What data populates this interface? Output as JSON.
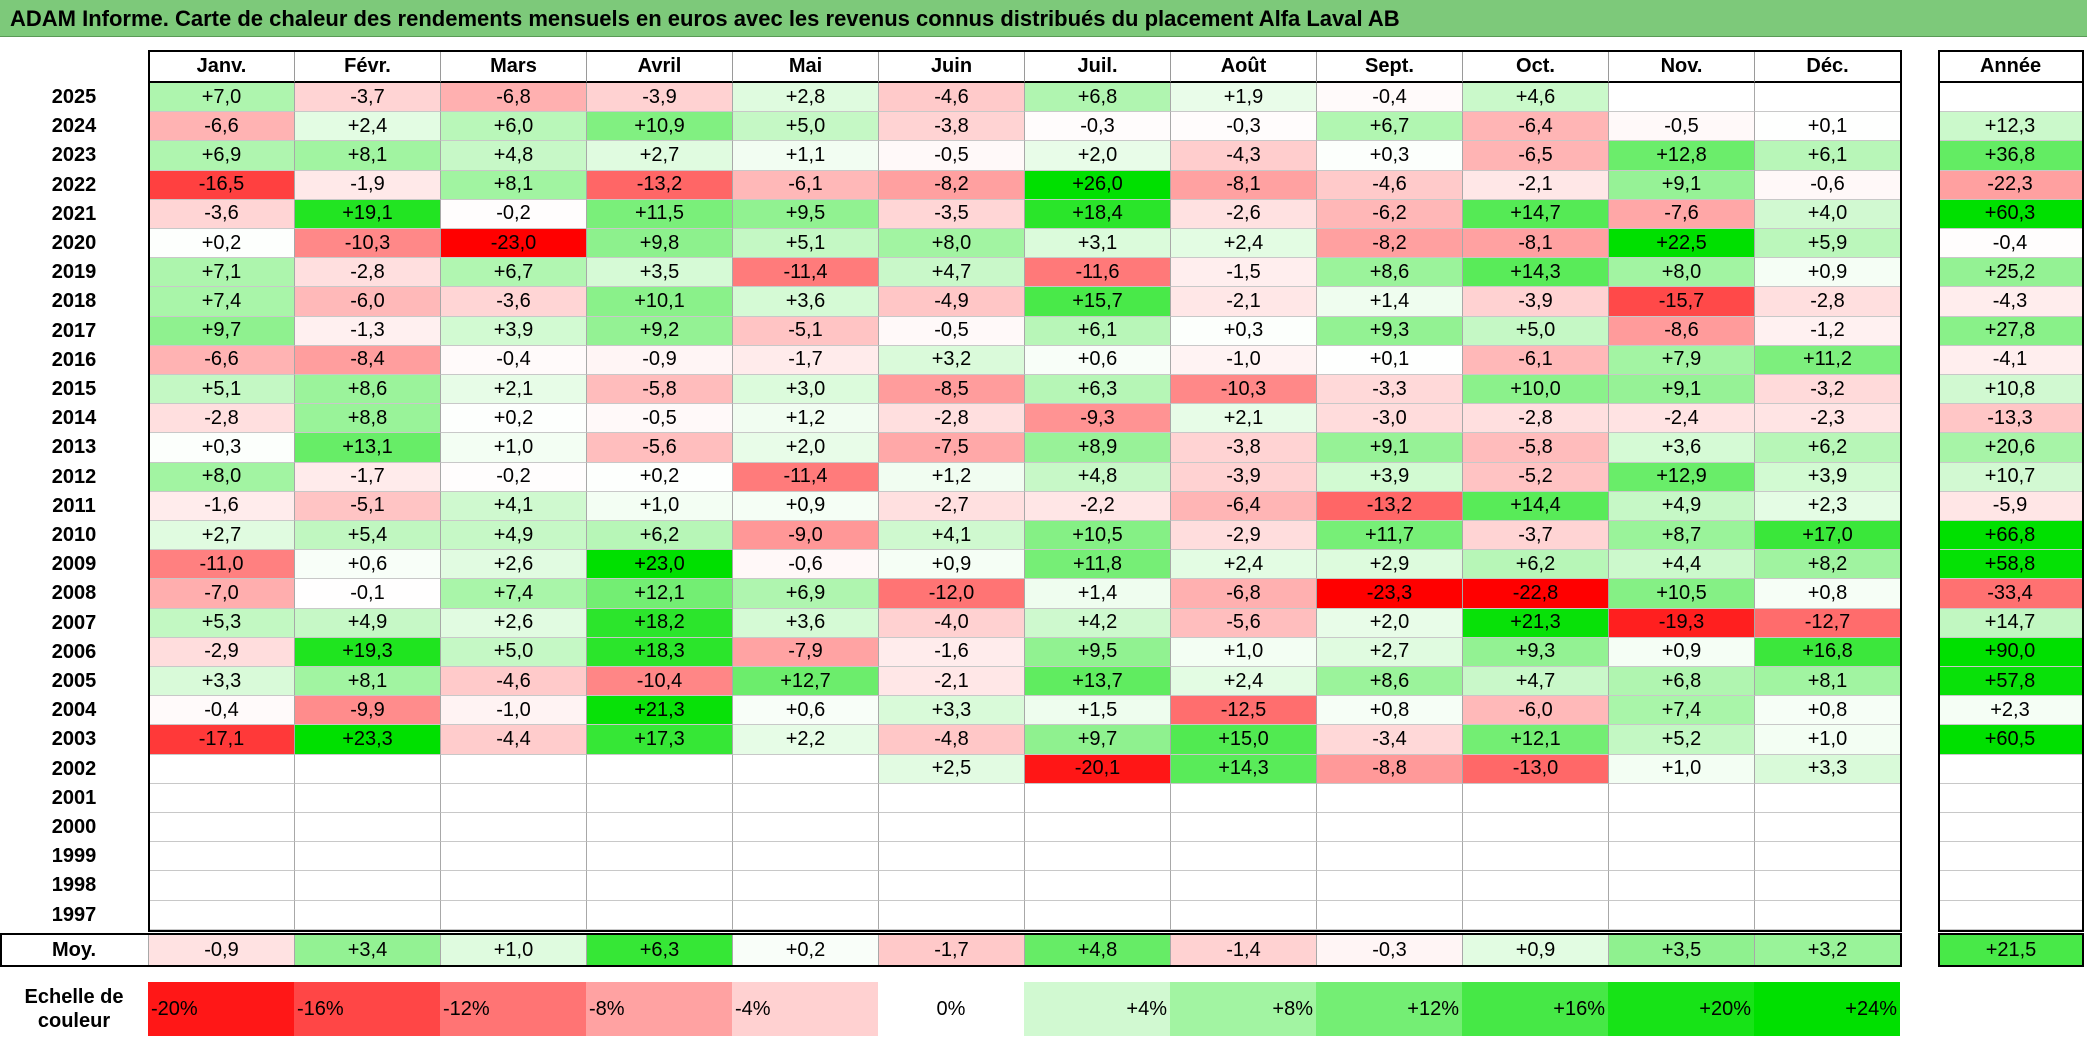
{
  "title": "ADAM Informe. Carte de chaleur des rendements mensuels en euros avec les revenus connus distribués du placement Alfa Laval AB",
  "chart_data": {
    "type": "heatmap",
    "columns": [
      "Janv.",
      "Févr.",
      "Mars",
      "Avril",
      "Mai",
      "Juin",
      "Juil.",
      "Août",
      "Sept.",
      "Oct.",
      "Nov.",
      "Déc."
    ],
    "year_header": "Année",
    "rows": [
      {
        "year": "2025",
        "values": [
          7.0,
          -3.7,
          -6.8,
          -3.9,
          2.8,
          -4.6,
          6.8,
          1.9,
          -0.4,
          4.6,
          null,
          null
        ],
        "annual": null
      },
      {
        "year": "2024",
        "values": [
          -6.6,
          2.4,
          6.0,
          10.9,
          5.0,
          -3.8,
          -0.3,
          -0.3,
          6.7,
          -6.4,
          -0.5,
          0.1
        ],
        "annual": 12.3
      },
      {
        "year": "2023",
        "values": [
          6.9,
          8.1,
          4.8,
          2.7,
          1.1,
          -0.5,
          2.0,
          -4.3,
          0.3,
          -6.5,
          12.8,
          6.1
        ],
        "annual": 36.8
      },
      {
        "year": "2022",
        "values": [
          -16.5,
          -1.9,
          8.1,
          -13.2,
          -6.1,
          -8.2,
          26.0,
          -8.1,
          -4.6,
          -2.1,
          9.1,
          -0.6
        ],
        "annual": -22.3
      },
      {
        "year": "2021",
        "values": [
          -3.6,
          19.1,
          -0.2,
          11.5,
          9.5,
          -3.5,
          18.4,
          -2.6,
          -6.2,
          14.7,
          -7.6,
          4.0
        ],
        "annual": 60.3
      },
      {
        "year": "2020",
        "values": [
          0.2,
          -10.3,
          -23.0,
          9.8,
          5.1,
          8.0,
          3.1,
          2.4,
          -8.2,
          -8.1,
          22.5,
          5.9
        ],
        "annual": -0.4
      },
      {
        "year": "2019",
        "values": [
          7.1,
          -2.8,
          6.7,
          3.5,
          -11.4,
          4.7,
          -11.6,
          -1.5,
          8.6,
          14.3,
          8.0,
          0.9
        ],
        "annual": 25.2
      },
      {
        "year": "2018",
        "values": [
          7.4,
          -6.0,
          -3.6,
          10.1,
          3.6,
          -4.9,
          15.7,
          -2.1,
          1.4,
          -3.9,
          -15.7,
          -2.8
        ],
        "annual": -4.3
      },
      {
        "year": "2017",
        "values": [
          9.7,
          -1.3,
          3.9,
          9.2,
          -5.1,
          -0.5,
          6.1,
          0.3,
          9.3,
          5.0,
          -8.6,
          -1.2
        ],
        "annual": 27.8
      },
      {
        "year": "2016",
        "values": [
          -6.6,
          -8.4,
          -0.4,
          -0.9,
          -1.7,
          3.2,
          0.6,
          -1.0,
          0.1,
          -6.1,
          7.9,
          11.2
        ],
        "annual": -4.1
      },
      {
        "year": "2015",
        "values": [
          5.1,
          8.6,
          2.1,
          -5.8,
          3.0,
          -8.5,
          6.3,
          -10.3,
          -3.3,
          10.0,
          9.1,
          -3.2
        ],
        "annual": 10.8
      },
      {
        "year": "2014",
        "values": [
          -2.8,
          8.8,
          0.2,
          -0.5,
          1.2,
          -2.8,
          -9.3,
          2.1,
          -3.0,
          -2.8,
          -2.4,
          -2.3
        ],
        "annual": -13.3
      },
      {
        "year": "2013",
        "values": [
          0.3,
          13.1,
          1.0,
          -5.6,
          2.0,
          -7.5,
          8.9,
          -3.8,
          9.1,
          -5.8,
          3.6,
          6.2
        ],
        "annual": 20.6
      },
      {
        "year": "2012",
        "values": [
          8.0,
          -1.7,
          -0.2,
          0.2,
          -11.4,
          1.2,
          4.8,
          -3.9,
          3.9,
          -5.2,
          12.9,
          3.9
        ],
        "annual": 10.7
      },
      {
        "year": "2011",
        "values": [
          -1.6,
          -5.1,
          4.1,
          1.0,
          0.9,
          -2.7,
          -2.2,
          -6.4,
          -13.2,
          14.4,
          4.9,
          2.3
        ],
        "annual": -5.9
      },
      {
        "year": "2010",
        "values": [
          2.7,
          5.4,
          4.9,
          6.2,
          -9.0,
          4.1,
          10.5,
          -2.9,
          11.7,
          -3.7,
          8.7,
          17.0
        ],
        "annual": 66.8
      },
      {
        "year": "2009",
        "values": [
          -11.0,
          0.6,
          2.6,
          23.0,
          -0.6,
          0.9,
          11.8,
          2.4,
          2.9,
          6.2,
          4.4,
          8.2
        ],
        "annual": 58.8
      },
      {
        "year": "2008",
        "values": [
          -7.0,
          -0.1,
          7.4,
          12.1,
          6.9,
          -12.0,
          1.4,
          -6.8,
          -23.3,
          -22.8,
          10.5,
          0.8
        ],
        "annual": -33.4
      },
      {
        "year": "2007",
        "values": [
          5.3,
          4.9,
          2.6,
          18.2,
          3.6,
          -4.0,
          4.2,
          -5.6,
          2.0,
          21.3,
          -19.3,
          -12.7
        ],
        "annual": 14.7
      },
      {
        "year": "2006",
        "values": [
          -2.9,
          19.3,
          5.0,
          18.3,
          -7.9,
          -1.6,
          9.5,
          1.0,
          2.7,
          9.3,
          0.9,
          16.8
        ],
        "annual": 90.0
      },
      {
        "year": "2005",
        "values": [
          3.3,
          8.1,
          -4.6,
          -10.4,
          12.7,
          -2.1,
          13.7,
          2.4,
          8.6,
          4.7,
          6.8,
          8.1
        ],
        "annual": 57.8
      },
      {
        "year": "2004",
        "values": [
          -0.4,
          -9.9,
          -1.0,
          21.3,
          0.6,
          3.3,
          1.5,
          -12.5,
          0.8,
          -6.0,
          7.4,
          0.8
        ],
        "annual": 2.3
      },
      {
        "year": "2003",
        "values": [
          -17.1,
          23.3,
          -4.4,
          17.3,
          2.2,
          -4.8,
          9.7,
          15.0,
          -3.4,
          12.1,
          5.2,
          1.0
        ],
        "annual": 60.5
      },
      {
        "year": "2002",
        "values": [
          null,
          null,
          null,
          null,
          null,
          2.5,
          -20.1,
          14.3,
          -8.8,
          -13.0,
          1.0,
          3.3
        ],
        "annual": null
      },
      {
        "year": "2001",
        "values": [
          null,
          null,
          null,
          null,
          null,
          null,
          null,
          null,
          null,
          null,
          null,
          null
        ],
        "annual": null
      },
      {
        "year": "2000",
        "values": [
          null,
          null,
          null,
          null,
          null,
          null,
          null,
          null,
          null,
          null,
          null,
          null
        ],
        "annual": null
      },
      {
        "year": "1999",
        "values": [
          null,
          null,
          null,
          null,
          null,
          null,
          null,
          null,
          null,
          null,
          null,
          null
        ],
        "annual": null
      },
      {
        "year": "1998",
        "values": [
          null,
          null,
          null,
          null,
          null,
          null,
          null,
          null,
          null,
          null,
          null,
          null
        ],
        "annual": null
      },
      {
        "year": "1997",
        "values": [
          null,
          null,
          null,
          null,
          null,
          null,
          null,
          null,
          null,
          null,
          null,
          null
        ],
        "annual": null
      }
    ],
    "average": {
      "label": "Moy.",
      "values": [
        -0.9,
        3.4,
        1.0,
        6.3,
        0.2,
        -1.7,
        4.8,
        -1.4,
        -0.3,
        0.9,
        3.5,
        3.2
      ],
      "annual": 21.5
    },
    "color_scale": {
      "title_line1": "Echelle de",
      "title_line2": "couleur",
      "stops": [
        -20,
        -16,
        -12,
        -8,
        -4,
        0,
        4,
        8,
        12,
        16,
        20,
        24
      ],
      "labels": [
        "-20%",
        "-16%",
        "-12%",
        "-8%",
        "-4%",
        "0%",
        "+4%",
        "+8%",
        "+12%",
        "+16%",
        "+20%",
        "+24%"
      ],
      "negative_color": "#ff0000",
      "neutral_color": "#ffffff",
      "positive_color": "#00e000"
    }
  }
}
